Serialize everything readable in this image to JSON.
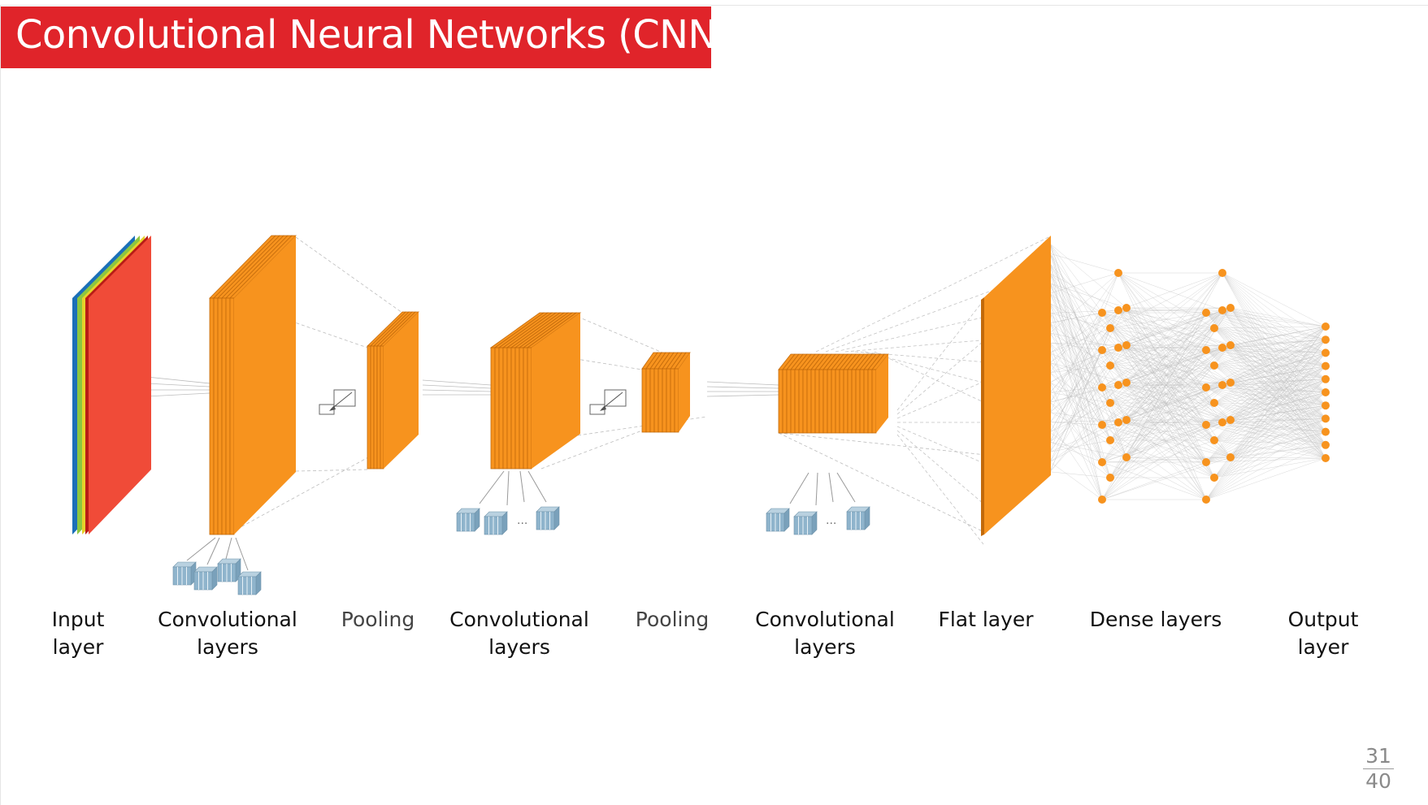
{
  "title": "Convolutional Neural Networks  (CNN)",
  "colors": {
    "title_bar": "#e0242a",
    "input_face": "#f04b38",
    "input_edge": "#b81c16",
    "channel_blue": "#1a6fb8",
    "channel_green": "#8cc63f",
    "channel_yellow": "#e6d22a",
    "feature_map": "#f7931e",
    "feature_map_dark": "#c26a0b",
    "neuron": "#f7931e",
    "kernel": "#8fb4cc",
    "connection": "#b5b5b5"
  },
  "labels": {
    "input": [
      "Input",
      "layer"
    ],
    "conv1": [
      "Convolutional",
      "layers"
    ],
    "pool1": [
      "Pooling"
    ],
    "conv2": [
      "Convolutional",
      "layers"
    ],
    "pool2": [
      "Pooling"
    ],
    "conv3": [
      "Convolutional",
      "layers"
    ],
    "flat": [
      "Flat layer"
    ],
    "dense": [
      "Dense layers"
    ],
    "output": [
      "Output",
      "layer"
    ]
  },
  "kernel_ellipsis": "...",
  "page": {
    "current": "31",
    "total": "40"
  }
}
